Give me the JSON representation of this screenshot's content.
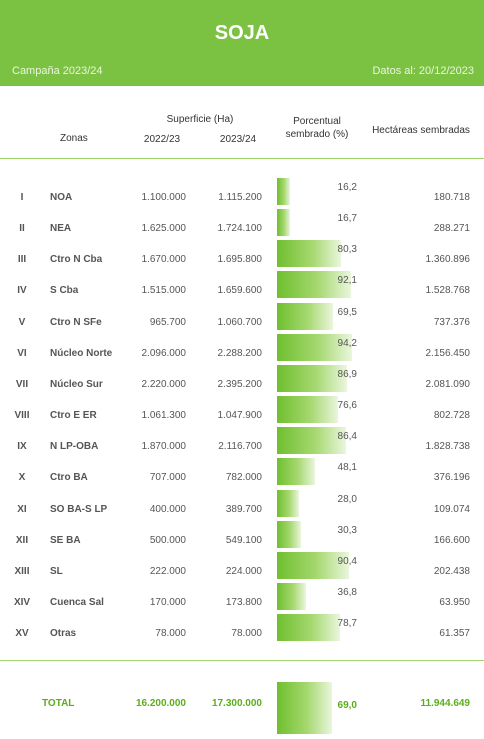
{
  "header": {
    "title": "SOJA",
    "campaign": "Campaña 2023/24",
    "date": "Datos al: 20/12/2023"
  },
  "columns": {
    "zonas": "Zonas",
    "superficie": "Superficie (Ha)",
    "year1": "2022/23",
    "year2": "2023/24",
    "porcentual_l1": "Porcentual",
    "porcentual_l2": "sembrado (%)",
    "hectareas": "Hectáreas sembradas"
  },
  "rows": [
    {
      "roman": "I",
      "zone": "NOA",
      "v2022": "1.100.000",
      "v2023": "1.115.200",
      "pct": "16,2",
      "pct_value": 16.2,
      "ha": "180.718"
    },
    {
      "roman": "II",
      "zone": "NEA",
      "v2022": "1.625.000",
      "v2023": "1.724.100",
      "pct": "16,7",
      "pct_value": 16.7,
      "ha": "288.271"
    },
    {
      "roman": "III",
      "zone": "Ctro N Cba",
      "v2022": "1.670.000",
      "v2023": "1.695.800",
      "pct": "80,3",
      "pct_value": 80.3,
      "ha": "1.360.896"
    },
    {
      "roman": "IV",
      "zone": "S Cba",
      "v2022": "1.515.000",
      "v2023": "1.659.600",
      "pct": "92,1",
      "pct_value": 92.1,
      "ha": "1.528.768"
    },
    {
      "roman": "V",
      "zone": "Ctro N SFe",
      "v2022": "965.700",
      "v2023": "1.060.700",
      "pct": "69,5",
      "pct_value": 69.5,
      "ha": "737.376"
    },
    {
      "roman": "VI",
      "zone": "Núcleo Norte",
      "v2022": "2.096.000",
      "v2023": "2.288.200",
      "pct": "94,2",
      "pct_value": 94.2,
      "ha": "2.156.450"
    },
    {
      "roman": "VII",
      "zone": "Núcleo Sur",
      "v2022": "2.220.000",
      "v2023": "2.395.200",
      "pct": "86,9",
      "pct_value": 86.9,
      "ha": "2.081.090"
    },
    {
      "roman": "VIII",
      "zone": "Ctro E ER",
      "v2022": "1.061.300",
      "v2023": "1.047.900",
      "pct": "76,6",
      "pct_value": 76.6,
      "ha": "802.728"
    },
    {
      "roman": "IX",
      "zone": "N LP-OBA",
      "v2022": "1.870.000",
      "v2023": "2.116.700",
      "pct": "86,4",
      "pct_value": 86.4,
      "ha": "1.828.738"
    },
    {
      "roman": "X",
      "zone": "Ctro BA",
      "v2022": "707.000",
      "v2023": "782.000",
      "pct": "48,1",
      "pct_value": 48.1,
      "ha": "376.196"
    },
    {
      "roman": "XI",
      "zone": "SO BA-S LP",
      "v2022": "400.000",
      "v2023": "389.700",
      "pct": "28,0",
      "pct_value": 28.0,
      "ha": "109.074"
    },
    {
      "roman": "XII",
      "zone": "SE BA",
      "v2022": "500.000",
      "v2023": "549.100",
      "pct": "30,3",
      "pct_value": 30.3,
      "ha": "166.600"
    },
    {
      "roman": "XIII",
      "zone": "SL",
      "v2022": "222.000",
      "v2023": "224.000",
      "pct": "90,4",
      "pct_value": 90.4,
      "ha": "202.438"
    },
    {
      "roman": "XIV",
      "zone": "Cuenca Sal",
      "v2022": "170.000",
      "v2023": "173.800",
      "pct": "36,8",
      "pct_value": 36.8,
      "ha": "63.950"
    },
    {
      "roman": "XV",
      "zone": "Otras",
      "v2022": "78.000",
      "v2023": "78.000",
      "pct": "78,7",
      "pct_value": 78.7,
      "ha": "61.357"
    }
  ],
  "total": {
    "label": "TOTAL",
    "v2022": "16.200.000",
    "v2023": "17.300.000",
    "pct": "69,0",
    "pct_value": 69.0,
    "ha": "11.944.649"
  },
  "colors": {
    "accent": "#7cc242",
    "total_text": "#5aae1a",
    "bar_dark": "#6fbf2f"
  }
}
